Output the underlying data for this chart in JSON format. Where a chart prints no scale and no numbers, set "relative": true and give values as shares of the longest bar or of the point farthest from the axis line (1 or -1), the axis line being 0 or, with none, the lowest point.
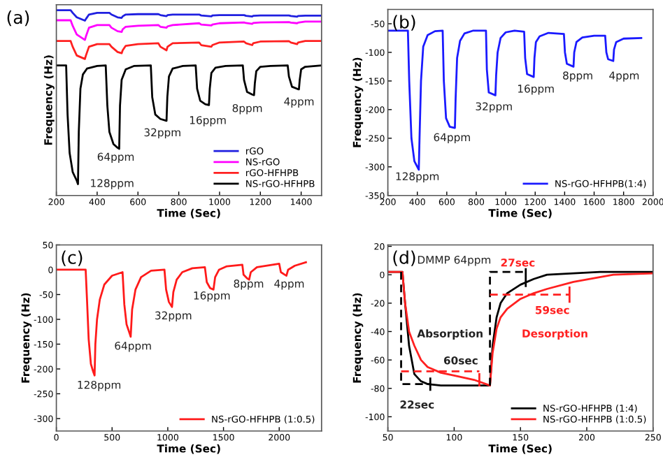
{
  "chart_data": [
    {
      "type": "line",
      "title": "(a)",
      "xlabel": "Time (Sec)",
      "ylabel": "Frequency (Hz)",
      "relative": true,
      "tick_labels": "x",
      "xlim": [
        200,
        1500
      ],
      "xticks": [
        200,
        400,
        600,
        800,
        1000,
        1200,
        1400
      ],
      "legend": "bottom right",
      "series": [
        {
          "name": "rGO",
          "color": "#1f1fe0",
          "x": [
            200,
            270,
            280,
            300,
            340,
            345,
            360,
            400,
            460,
            470,
            500,
            520,
            525,
            540,
            600,
            700,
            710,
            740,
            745,
            770,
            900,
            910,
            960,
            965,
            1000,
            1120,
            1130,
            1160,
            1165,
            1200,
            1340,
            1350,
            1380,
            1385,
            1420,
            1500
          ],
          "values": [
            1,
            1,
            0.986,
            0.962,
            0.944,
            0.953,
            0.977,
            0.986,
            0.986,
            0.977,
            0.962,
            0.959,
            0.967,
            0.977,
            0.979,
            0.979,
            0.974,
            0.968,
            0.974,
            0.977,
            0.977,
            0.972,
            0.967,
            0.972,
            0.974,
            0.974,
            0.97,
            0.966,
            0.97,
            0.972,
            0.972,
            0.969,
            0.965,
            0.969,
            0.971,
            0.971
          ]
        },
        {
          "name": "NS-rGO",
          "color": "#ff00ff",
          "x": [
            200,
            270,
            280,
            300,
            340,
            345,
            360,
            400,
            460,
            470,
            500,
            520,
            525,
            540,
            600,
            700,
            710,
            740,
            745,
            770,
            900,
            910,
            960,
            965,
            1000,
            1120,
            1130,
            1160,
            1165,
            1200,
            1340,
            1350,
            1380,
            1385,
            1420,
            1500
          ],
          "values": [
            0.946,
            0.946,
            0.916,
            0.869,
            0.84,
            0.859,
            0.906,
            0.92,
            0.92,
            0.906,
            0.887,
            0.883,
            0.897,
            0.911,
            0.916,
            0.92,
            0.911,
            0.906,
            0.913,
            0.92,
            0.93,
            0.923,
            0.918,
            0.923,
            0.93,
            0.934,
            0.931,
            0.927,
            0.931,
            0.934,
            0.936,
            0.933,
            0.93,
            0.933,
            0.939,
            0.939
          ]
        },
        {
          "name": "rGO-HFHPB",
          "color": "#ff2020",
          "x": [
            200,
            270,
            280,
            300,
            340,
            345,
            360,
            400,
            460,
            470,
            500,
            520,
            525,
            540,
            600,
            700,
            710,
            740,
            745,
            770,
            900,
            910,
            960,
            965,
            1000,
            1120,
            1130,
            1160,
            1165,
            1200,
            1340,
            1350,
            1380,
            1385,
            1420,
            1500
          ],
          "values": [
            0.834,
            0.834,
            0.803,
            0.756,
            0.737,
            0.756,
            0.803,
            0.817,
            0.817,
            0.803,
            0.775,
            0.768,
            0.784,
            0.808,
            0.817,
            0.822,
            0.803,
            0.784,
            0.803,
            0.822,
            0.826,
            0.812,
            0.803,
            0.812,
            0.826,
            0.831,
            0.822,
            0.812,
            0.822,
            0.831,
            0.833,
            0.826,
            0.817,
            0.826,
            0.834,
            0.834
          ]
        },
        {
          "name": "NS-rGO-HFHPB",
          "color": "#000000",
          "x": [
            200,
            248,
            255,
            265,
            280,
            300,
            306,
            310,
            318,
            330,
            350,
            400,
            442,
            450,
            460,
            480,
            500,
            508,
            512,
            520,
            540,
            580,
            663,
            670,
            685,
            710,
            740,
            744,
            752,
            770,
            820,
            883,
            890,
            905,
            930,
            948,
            952,
            960,
            980,
            1030,
            1114,
            1120,
            1135,
            1160,
            1169,
            1173,
            1180,
            1200,
            1250,
            1334,
            1340,
            1355,
            1380,
            1389,
            1393,
            1400,
            1420,
            1500
          ],
          "values": [
            0.702,
            0.702,
            0.437,
            0.23,
            0.127,
            0.08,
            0.061,
            0.343,
            0.577,
            0.653,
            0.685,
            0.699,
            0.702,
            0.484,
            0.343,
            0.277,
            0.258,
            0.252,
            0.484,
            0.624,
            0.681,
            0.699,
            0.702,
            0.531,
            0.437,
            0.413,
            0.403,
            0.531,
            0.643,
            0.685,
            0.699,
            0.702,
            0.577,
            0.512,
            0.493,
            0.488,
            0.577,
            0.662,
            0.69,
            0.699,
            0.702,
            0.624,
            0.559,
            0.545,
            0.542,
            0.606,
            0.671,
            0.695,
            0.699,
            0.702,
            0.643,
            0.587,
            0.576,
            0.573,
            0.624,
            0.681,
            0.695,
            0.702
          ]
        }
      ],
      "annotations": [
        "128ppm",
        "64ppm",
        "32ppm",
        "16ppm",
        "8ppm",
        "4ppm"
      ]
    },
    {
      "type": "line",
      "title": "(b)",
      "xlabel": "Time (Sec)",
      "ylabel": "Frequency (Hz)",
      "xlim": [
        200,
        2000
      ],
      "xticks": [
        200,
        400,
        600,
        800,
        1000,
        1200,
        1400,
        1600,
        1800,
        2000
      ],
      "ylim": [
        -350,
        -25
      ],
      "yticks": [
        -350,
        -300,
        -250,
        -200,
        -150,
        -100,
        -50
      ],
      "legend": "bottom right",
      "series": [
        {
          "name": "NS-rGO-HFHPB(1:4)",
          "color": "#1a1aff",
          "x": [
            200,
            336,
            345,
            360,
            380,
            400,
            410,
            415,
            425,
            440,
            470,
            520,
            572,
            580,
            595,
            620,
            655,
            660,
            670,
            690,
            720,
            780,
            866,
            872,
            885,
            930,
            935,
            945,
            965,
            1000,
            1060,
            1125,
            1132,
            1145,
            1190,
            1195,
            1205,
            1230,
            1290,
            1395,
            1402,
            1415,
            1460,
            1465,
            1480,
            1520,
            1600,
            1675,
            1683,
            1695,
            1730,
            1735,
            1750,
            1800,
            1920
          ],
          "values": [
            -62,
            -62,
            -150,
            -250,
            -290,
            -300,
            -305,
            -250,
            -150,
            -90,
            -70,
            -63,
            -62,
            -150,
            -215,
            -230,
            -232,
            -180,
            -110,
            -80,
            -67,
            -62,
            -62,
            -130,
            -170,
            -175,
            -140,
            -100,
            -75,
            -65,
            -62,
            -64,
            -110,
            -138,
            -143,
            -110,
            -82,
            -72,
            -66,
            -68,
            -100,
            -120,
            -125,
            -100,
            -82,
            -74,
            -71,
            -71,
            -100,
            -112,
            -115,
            -95,
            -82,
            -76,
            -75
          ]
        }
      ],
      "annotations": [
        "128ppm",
        "64ppm",
        "32ppm",
        "16ppm",
        "8ppm",
        "4ppm"
      ]
    },
    {
      "type": "line",
      "title": "(c)",
      "xlabel": "Time (Sec)",
      "ylabel": "Frequency (Hz)",
      "xlim": [
        0,
        2380
      ],
      "xticks": [
        0,
        500,
        1000,
        1500,
        2000
      ],
      "ylim": [
        -325,
        50
      ],
      "yticks": [
        -300,
        -250,
        -200,
        -150,
        -100,
        -50,
        0,
        50
      ],
      "legend": "bottom right",
      "series": [
        {
          "name": "NS-rGO-HFHPB (1:0.5)",
          "color": "#ff1a1a",
          "x": [
            0,
            263,
            275,
            290,
            310,
            330,
            343,
            350,
            365,
            390,
            430,
            500,
            594,
            610,
            630,
            660,
            667,
            680,
            710,
            760,
            850,
            970,
            985,
            1010,
            1038,
            1050,
            1080,
            1130,
            1220,
            1333,
            1350,
            1380,
            1410,
            1425,
            1460,
            1530,
            1669,
            1680,
            1710,
            1730,
            1745,
            1800,
            2000,
            2015,
            2050,
            2065,
            2080,
            2140,
            2240
          ],
          "values": [
            0,
            0,
            -60,
            -140,
            -190,
            -205,
            -213,
            -150,
            -100,
            -60,
            -30,
            -12,
            -5,
            -70,
            -110,
            -130,
            -135,
            -80,
            -40,
            -15,
            -2,
            0,
            -40,
            -65,
            -75,
            -45,
            -20,
            -5,
            3,
            5,
            -25,
            -37,
            -40,
            -15,
            0,
            7,
            10,
            -10,
            -17,
            -20,
            -5,
            5,
            12,
            -5,
            -10,
            -12,
            0,
            8,
            15
          ]
        }
      ],
      "annotations": [
        "128ppm",
        "64ppm",
        "32ppm",
        "16ppm",
        "8ppm",
        "4ppm"
      ]
    },
    {
      "type": "line",
      "title": "(d)",
      "xlabel": "Time (Sec)",
      "ylabel": "Frequency (Hz)",
      "xlim": [
        50,
        250
      ],
      "xticks": [
        50,
        100,
        150,
        200,
        250
      ],
      "ylim": [
        -110,
        21
      ],
      "yticks": [
        -100,
        -80,
        -60,
        -40,
        -20,
        0,
        20
      ],
      "legend": "bottom right",
      "series": [
        {
          "name": "NS-rGO-HFHPB (1:4)",
          "color": "#000000",
          "x": [
            50,
            61,
            63,
            66,
            70,
            75,
            80,
            90,
            110,
            127,
            129,
            132,
            135,
            140,
            150,
            160,
            170,
            190,
            210,
            250
          ],
          "values": [
            2,
            2,
            -20,
            -50,
            -70,
            -75,
            -77,
            -78,
            -78,
            -78,
            -50,
            -30,
            -20,
            -13,
            -7,
            -3,
            0,
            1,
            2,
            2
          ]
        },
        {
          "name": "NS-rGO-HFHPB (1:0.5)",
          "color": "#ff2020",
          "x": [
            50,
            61,
            63,
            66,
            70,
            75,
            80,
            90,
            100,
            115,
            127,
            129,
            132,
            135,
            140,
            150,
            160,
            170,
            190,
            220,
            250
          ],
          "values": [
            2,
            2,
            -20,
            -40,
            -50,
            -60,
            -65,
            -69,
            -71,
            -74,
            -78,
            -55,
            -38,
            -30,
            -24,
            -17,
            -13,
            -10,
            -5,
            0,
            1
          ]
        },
        {
          "color": "#000000",
          "line_style": "dashed",
          "x": [
            60,
            60,
            82
          ],
          "values": [
            2,
            -77,
            -77
          ]
        },
        {
          "color": "#000000",
          "x": [
            82,
            82
          ],
          "values": [
            -73,
            -81
          ]
        },
        {
          "color": "#ff2020",
          "line_style": "dashed",
          "x": [
            60,
            119
          ],
          "values": [
            -68,
            -68
          ]
        },
        {
          "color": "#ff2020",
          "x": [
            119,
            119
          ],
          "values": [
            -70,
            -78
          ]
        },
        {
          "color": "#000000",
          "line_style": "dashed",
          "x": [
            127,
            127,
            154
          ],
          "values": [
            -78,
            2,
            2
          ]
        },
        {
          "color": "#000000",
          "x": [
            154,
            154
          ],
          "values": [
            4,
            -8
          ]
        },
        {
          "color": "#ff2020",
          "line_style": "dashed",
          "x": [
            127,
            187
          ],
          "values": [
            -14,
            -14
          ]
        },
        {
          "color": "#ff2020",
          "x": [
            187,
            187
          ],
          "values": [
            -9,
            -19
          ]
        }
      ],
      "annotations": [
        "DMMP 64ppm",
        "27sec",
        "59sec",
        "Absorption",
        "Desorption",
        "60sec",
        "22sec"
      ]
    }
  ]
}
